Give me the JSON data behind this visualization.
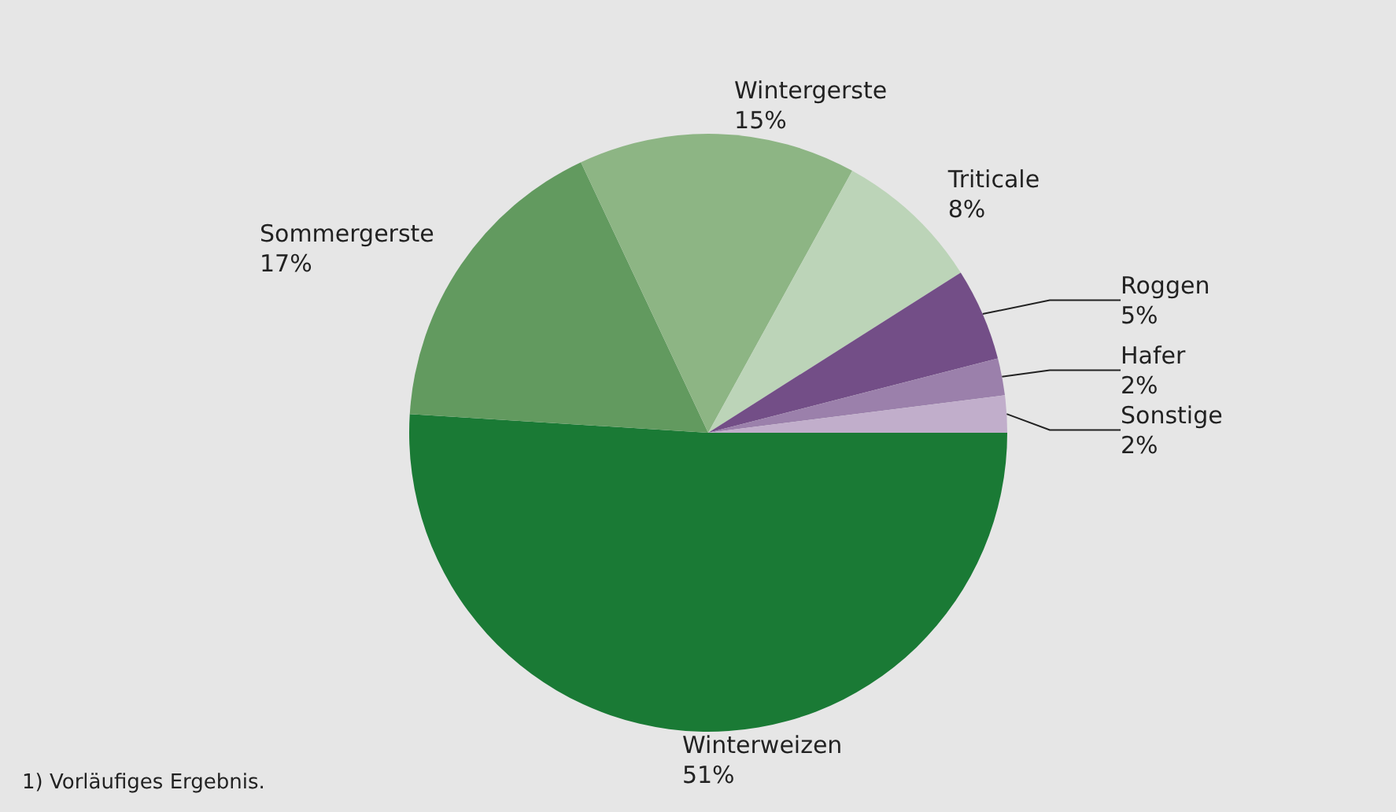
{
  "chart_data": {
    "type": "pie",
    "categories": [
      "Winterweizen",
      "Sommergerste",
      "Wintergerste",
      "Triticale",
      "Roggen",
      "Hafer",
      "Sonstige"
    ],
    "values": [
      51,
      17,
      15,
      8,
      5,
      2,
      2
    ],
    "colors": [
      "#1a7a35",
      "#629a5f",
      "#8db584",
      "#bcd4b8",
      "#734e87",
      "#9b80ab",
      "#c1aecb"
    ],
    "legend": false,
    "value_labels": [
      "51%",
      "17%",
      "15%",
      "8%",
      "5%",
      "2%",
      "2%"
    ],
    "annotations": [
      "1) Vorläufiges Ergebnis."
    ]
  }
}
